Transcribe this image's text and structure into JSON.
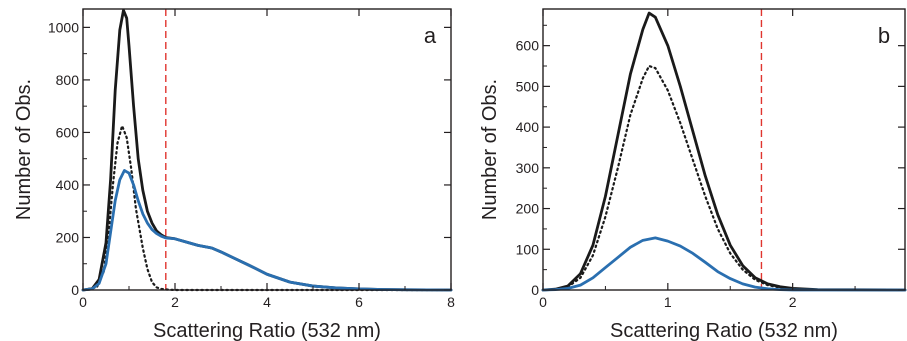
{
  "chart_data": [
    {
      "type": "line",
      "panel_label": "a",
      "xlabel": "Scattering Ratio (532 nm)",
      "ylabel": "Number of Obs.",
      "xlim": [
        0,
        8
      ],
      "ylim": [
        0,
        1070
      ],
      "x_ticks": [
        0,
        2,
        4,
        6,
        8
      ],
      "y_ticks": [
        0,
        200,
        400,
        600,
        800,
        1000
      ],
      "threshold_line": {
        "x": 1.8,
        "style": "dashed",
        "color": "#e0352f"
      },
      "series": [
        {
          "style": "solid",
          "color": "#1a1a1a",
          "points": [
            [
              0.0,
              0
            ],
            [
              0.2,
              5
            ],
            [
              0.35,
              40
            ],
            [
              0.5,
              180
            ],
            [
              0.6,
              420
            ],
            [
              0.7,
              760
            ],
            [
              0.8,
              990
            ],
            [
              0.88,
              1065
            ],
            [
              0.95,
              1035
            ],
            [
              1.0,
              930
            ],
            [
              1.1,
              700
            ],
            [
              1.2,
              500
            ],
            [
              1.3,
              380
            ],
            [
              1.4,
              300
            ],
            [
              1.5,
              255
            ],
            [
              1.6,
              225
            ],
            [
              1.7,
              210
            ],
            [
              1.8,
              200
            ],
            [
              2.0,
              195
            ],
            [
              2.3,
              180
            ],
            [
              2.5,
              170
            ],
            [
              2.8,
              160
            ],
            [
              3.0,
              145
            ],
            [
              3.3,
              120
            ],
            [
              3.6,
              95
            ],
            [
              4.0,
              60
            ],
            [
              4.5,
              30
            ],
            [
              5.0,
              15
            ],
            [
              5.5,
              8
            ],
            [
              6.0,
              4
            ],
            [
              6.5,
              2
            ],
            [
              7.0,
              1
            ],
            [
              8.0,
              0
            ]
          ]
        },
        {
          "style": "dotted",
          "color": "#1a1a1a",
          "points": [
            [
              0.0,
              0
            ],
            [
              0.3,
              10
            ],
            [
              0.45,
              70
            ],
            [
              0.55,
              200
            ],
            [
              0.65,
              400
            ],
            [
              0.75,
              560
            ],
            [
              0.85,
              625
            ],
            [
              0.95,
              580
            ],
            [
              1.05,
              460
            ],
            [
              1.15,
              310
            ],
            [
              1.3,
              160
            ],
            [
              1.4,
              80
            ],
            [
              1.5,
              30
            ],
            [
              1.6,
              10
            ],
            [
              1.7,
              4
            ],
            [
              1.8,
              2
            ],
            [
              2.0,
              0
            ],
            [
              8.0,
              0
            ]
          ]
        },
        {
          "style": "solid",
          "color": "#2a6fb0",
          "points": [
            [
              0.0,
              0
            ],
            [
              0.2,
              4
            ],
            [
              0.35,
              25
            ],
            [
              0.5,
              100
            ],
            [
              0.6,
              220
            ],
            [
              0.7,
              340
            ],
            [
              0.8,
              420
            ],
            [
              0.9,
              455
            ],
            [
              1.0,
              445
            ],
            [
              1.1,
              400
            ],
            [
              1.2,
              340
            ],
            [
              1.3,
              290
            ],
            [
              1.4,
              255
            ],
            [
              1.5,
              230
            ],
            [
              1.6,
              215
            ],
            [
              1.7,
              205
            ],
            [
              1.8,
              198
            ],
            [
              2.0,
              195
            ],
            [
              2.3,
              180
            ],
            [
              2.5,
              170
            ],
            [
              2.8,
              160
            ],
            [
              3.0,
              145
            ],
            [
              3.3,
              120
            ],
            [
              3.6,
              95
            ],
            [
              4.0,
              60
            ],
            [
              4.5,
              30
            ],
            [
              5.0,
              15
            ],
            [
              5.5,
              8
            ],
            [
              6.0,
              4
            ],
            [
              6.5,
              2
            ],
            [
              7.0,
              1
            ],
            [
              8.0,
              0
            ]
          ]
        }
      ]
    },
    {
      "type": "line",
      "panel_label": "b",
      "xlabel": "Scattering Ratio (532 nm)",
      "ylabel": "Number of Obs.",
      "xlim": [
        0,
        2.9
      ],
      "ylim": [
        0,
        690
      ],
      "x_ticks": [
        0,
        1,
        2
      ],
      "y_ticks": [
        0,
        100,
        200,
        300,
        400,
        500,
        600
      ],
      "threshold_line": {
        "x": 1.75,
        "style": "dashed",
        "color": "#e0352f"
      },
      "series": [
        {
          "style": "solid",
          "color": "#1a1a1a",
          "points": [
            [
              0.0,
              0
            ],
            [
              0.1,
              2
            ],
            [
              0.2,
              10
            ],
            [
              0.3,
              40
            ],
            [
              0.4,
              110
            ],
            [
              0.5,
              230
            ],
            [
              0.6,
              380
            ],
            [
              0.7,
              530
            ],
            [
              0.8,
              640
            ],
            [
              0.85,
              680
            ],
            [
              0.9,
              670
            ],
            [
              1.0,
              600
            ],
            [
              1.1,
              500
            ],
            [
              1.2,
              390
            ],
            [
              1.3,
              280
            ],
            [
              1.4,
              185
            ],
            [
              1.5,
              110
            ],
            [
              1.6,
              60
            ],
            [
              1.7,
              30
            ],
            [
              1.8,
              15
            ],
            [
              1.9,
              8
            ],
            [
              2.0,
              4
            ],
            [
              2.2,
              1
            ],
            [
              2.9,
              0
            ]
          ]
        },
        {
          "style": "dotted",
          "color": "#1a1a1a",
          "points": [
            [
              0.0,
              0
            ],
            [
              0.1,
              2
            ],
            [
              0.2,
              8
            ],
            [
              0.3,
              30
            ],
            [
              0.4,
              85
            ],
            [
              0.5,
              180
            ],
            [
              0.6,
              300
            ],
            [
              0.7,
              430
            ],
            [
              0.8,
              520
            ],
            [
              0.85,
              550
            ],
            [
              0.9,
              545
            ],
            [
              1.0,
              490
            ],
            [
              1.1,
              410
            ],
            [
              1.2,
              320
            ],
            [
              1.3,
              230
            ],
            [
              1.4,
              150
            ],
            [
              1.5,
              90
            ],
            [
              1.6,
              50
            ],
            [
              1.7,
              25
            ],
            [
              1.8,
              12
            ],
            [
              1.9,
              6
            ],
            [
              2.0,
              3
            ],
            [
              2.2,
              1
            ],
            [
              2.9,
              0
            ]
          ]
        },
        {
          "style": "solid",
          "color": "#2a6fb0",
          "points": [
            [
              0.0,
              0
            ],
            [
              0.1,
              1
            ],
            [
              0.2,
              4
            ],
            [
              0.3,
              12
            ],
            [
              0.4,
              30
            ],
            [
              0.5,
              55
            ],
            [
              0.6,
              80
            ],
            [
              0.7,
              105
            ],
            [
              0.8,
              122
            ],
            [
              0.9,
              128
            ],
            [
              1.0,
              120
            ],
            [
              1.1,
              108
            ],
            [
              1.2,
              90
            ],
            [
              1.3,
              68
            ],
            [
              1.4,
              45
            ],
            [
              1.5,
              28
            ],
            [
              1.6,
              15
            ],
            [
              1.7,
              7
            ],
            [
              1.8,
              3
            ],
            [
              1.9,
              1
            ],
            [
              2.0,
              0
            ],
            [
              2.9,
              0
            ]
          ]
        }
      ]
    }
  ]
}
